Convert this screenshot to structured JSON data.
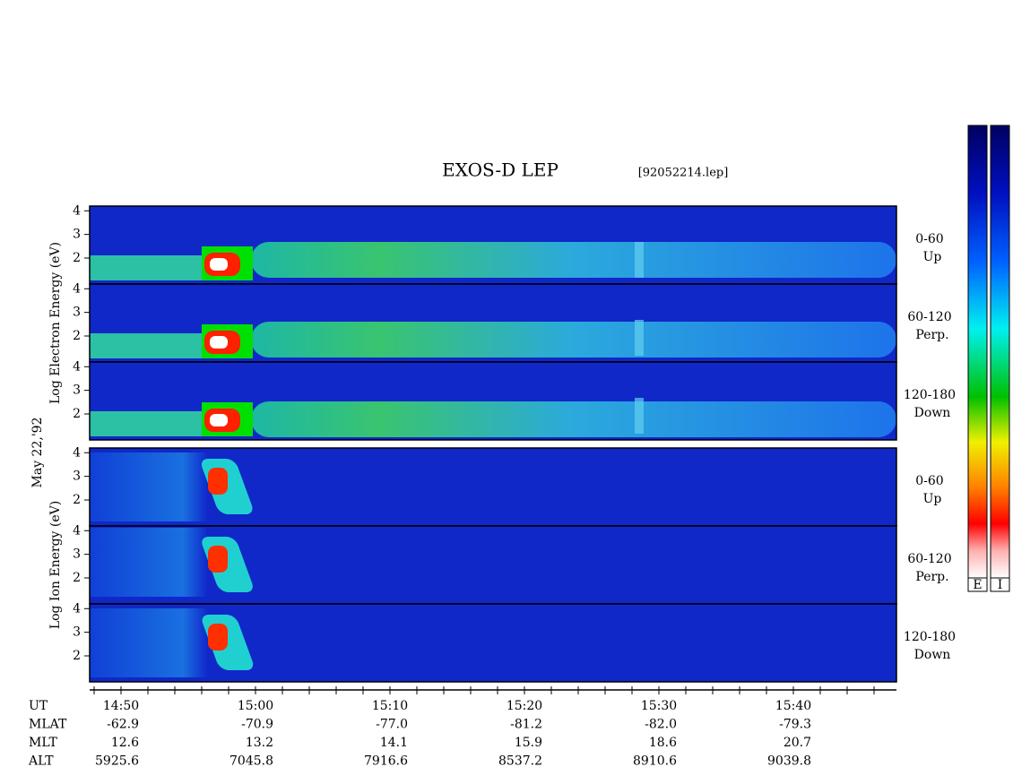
{
  "title": "EXOS-D LEP",
  "file": "[92052214.lep]",
  "date": "May 22,'92",
  "groups": [
    {
      "ylabel": "Log  Electron  Energy (eV)",
      "panels": [
        {
          "range": "0-60",
          "dir": "Up"
        },
        {
          "range": "60-120",
          "dir": "Perp."
        },
        {
          "range": "120-180",
          "dir": "Down"
        }
      ]
    },
    {
      "ylabel": "Log  Ion  Energy (eV)",
      "panels": [
        {
          "range": "0-60",
          "dir": "Up"
        },
        {
          "range": "60-120",
          "dir": "Perp."
        },
        {
          "range": "120-180",
          "dir": "Down"
        }
      ]
    }
  ],
  "yticks": [
    2,
    3,
    4
  ],
  "orbit": [
    {
      "label": "UT",
      "values": [
        "14:50",
        "15:00",
        "15:10",
        "15:20",
        "15:30",
        "15:40"
      ]
    },
    {
      "label": "MLAT",
      "values": [
        "-62.9",
        "-70.9",
        "-77.0",
        "-81.2",
        "-82.0",
        "-79.3"
      ]
    },
    {
      "label": "MLT",
      "values": [
        "12.6",
        "13.2",
        "14.1",
        "15.9",
        "18.6",
        "20.7"
      ]
    },
    {
      "label": "ALT",
      "values": [
        "5925.6",
        "7045.8",
        "7916.6",
        "8537.2",
        "8910.6",
        "9039.8"
      ]
    }
  ],
  "colorbar_labels": [
    "E",
    "I"
  ]
}
